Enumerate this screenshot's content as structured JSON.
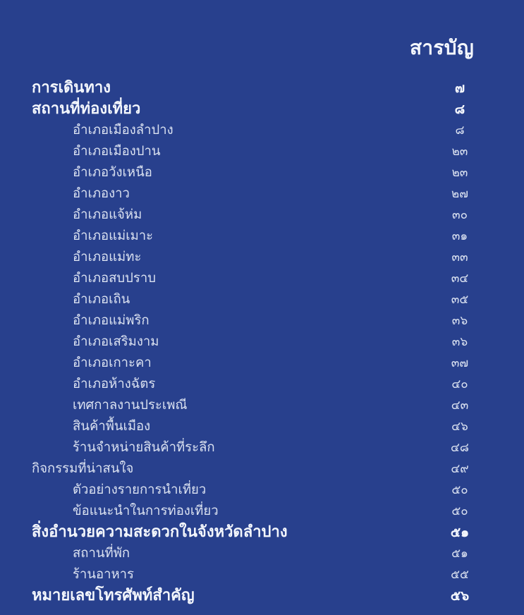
{
  "page": {
    "title": "สารบัญ",
    "colors": {
      "background": "#28408D",
      "main_text": "#F3F6FC",
      "sub_text": "#DAE1F0"
    }
  },
  "toc": {
    "entries": [
      {
        "label": "การเดินทาง",
        "page": "๗",
        "level": "main"
      },
      {
        "label": "สถานที่ท่องเที่ยว",
        "page": "๘",
        "level": "main"
      },
      {
        "label": "อำเภอเมืองลำปาง",
        "page": "๘",
        "level": "sub"
      },
      {
        "label": "อำเภอเมืองปาน",
        "page": "๒๓",
        "level": "sub"
      },
      {
        "label": "อำเภอวังเหนือ",
        "page": "๒๓",
        "level": "sub"
      },
      {
        "label": "อำเภองาว",
        "page": "๒๗",
        "level": "sub"
      },
      {
        "label": "อำเภอแจ้ห่ม",
        "page": "๓๐",
        "level": "sub"
      },
      {
        "label": "อำเภอแม่เมาะ",
        "page": "๓๑",
        "level": "sub"
      },
      {
        "label": "อำเภอแม่ทะ",
        "page": "๓๓",
        "level": "sub"
      },
      {
        "label": "อำเภอสบปราบ",
        "page": "๓๔",
        "level": "sub"
      },
      {
        "label": "อำเภอเถิน",
        "page": "๓๕",
        "level": "sub"
      },
      {
        "label": "อำเภอแม่พริก",
        "page": "๓๖",
        "level": "sub"
      },
      {
        "label": "อำเภอเสริมงาม",
        "page": "๓๖",
        "level": "sub"
      },
      {
        "label": "อำเภอเกาะคา",
        "page": "๓๗",
        "level": "sub"
      },
      {
        "label": "อำเภอห้างฉัตร",
        "page": "๔๐",
        "level": "sub"
      },
      {
        "label": "เทศกาลงานประเพณี",
        "page": "๔๓",
        "level": "sub"
      },
      {
        "label": "สินค้าพื้นเมือง",
        "page": "๔๖",
        "level": "sub"
      },
      {
        "label": "ร้านจำหน่ายสินค้าที่ระลึก",
        "page": "๔๘",
        "level": "sub"
      },
      {
        "label": "กิจกรรมที่น่าสนใจ",
        "page": "๔๙",
        "level": "mid"
      },
      {
        "label": "ตัวอย่างรายการนำเที่ยว",
        "page": "๕๐",
        "level": "sub"
      },
      {
        "label": "ข้อแนะนำในการท่องเที่ยว",
        "page": "๕๐",
        "level": "sub"
      },
      {
        "label": "สิ่งอำนวยความสะดวกในจังหวัดลำปาง",
        "page": "๕๑",
        "level": "main"
      },
      {
        "label": "สถานที่พัก",
        "page": "๕๑",
        "level": "sub"
      },
      {
        "label": "ร้านอาหาร",
        "page": "๕๕",
        "level": "sub"
      },
      {
        "label": "หมายเลขโทรศัพท์สำคัญ",
        "page": "๕๖",
        "level": "main"
      }
    ]
  }
}
